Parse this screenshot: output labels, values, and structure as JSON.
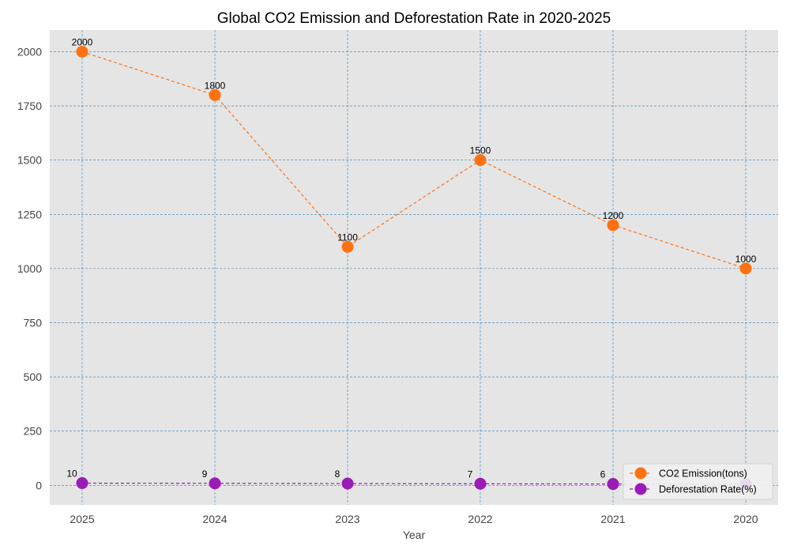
{
  "chart_data": {
    "type": "line",
    "title": "Global CO2 Emission and Deforestation Rate in 2020-2025",
    "xlabel": "Year",
    "ylabel": "",
    "x": [
      "2025",
      "2024",
      "2023",
      "2022",
      "2021",
      "2020"
    ],
    "ylim": [
      -90,
      2100
    ],
    "yticks": [
      0,
      250,
      500,
      750,
      1000,
      1250,
      1500,
      1750,
      2000
    ],
    "grid": true,
    "legend_position": "bottom-right",
    "series": [
      {
        "name": "CO2 Emission(tons)",
        "values": [
          2000,
          1800,
          1100,
          1500,
          1200,
          1000
        ],
        "labels": [
          "2000",
          "1800",
          "1100",
          "1500",
          "1200",
          "1000"
        ],
        "color": "#ff7110"
      },
      {
        "name": "Deforestation Rate(%)",
        "values": [
          10,
          9,
          8,
          7,
          6,
          5
        ],
        "labels": [
          "10",
          "9",
          "8",
          "7",
          "6",
          ""
        ],
        "color": "#9a1bb5"
      }
    ]
  }
}
